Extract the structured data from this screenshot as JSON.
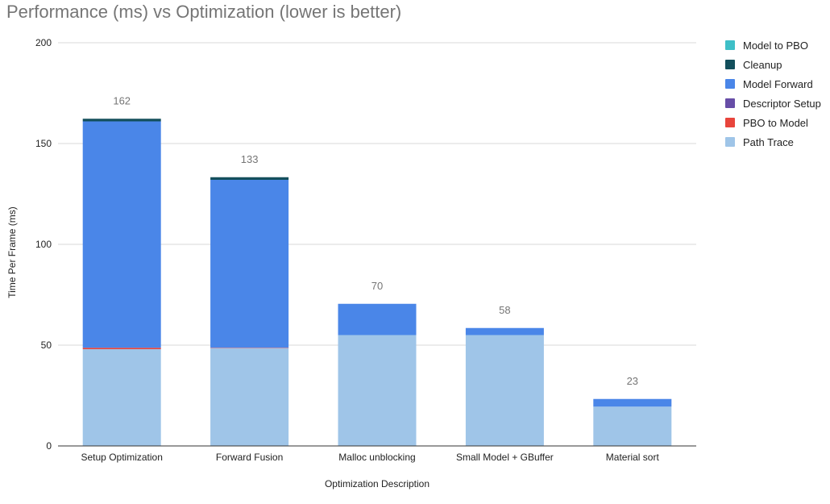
{
  "colors": {
    "model_to_pbo": "#3ebfc7",
    "cleanup": "#134f5c",
    "model_forward": "#4a86e8",
    "descriptor_setup": "#674ea7",
    "pbo_to_model": "#e8453c",
    "path_trace": "#9fc5e8",
    "grid": "#d9d9d9",
    "axis": "#333333",
    "text": "#222222",
    "title": "#757575",
    "total_label": "#757575"
  },
  "chart_data": {
    "type": "bar",
    "stacked": true,
    "title": "Performance (ms) vs Optimization (lower is better)",
    "xlabel": "Optimization Description",
    "ylabel": "Time Per Frame (ms)",
    "ylim": [
      0,
      200
    ],
    "yticks": [
      "0",
      "50",
      "100",
      "150",
      "200"
    ],
    "grid": true,
    "legend_position": "right",
    "categories": [
      "Setup Optimization",
      "Forward Fusion",
      "Malloc unblocking",
      "Small Model + GBuffer",
      "Material sort"
    ],
    "totals": [
      "162",
      "133",
      "70",
      "58",
      "23"
    ],
    "series": [
      {
        "name": "Path Trace",
        "color_key": "path_trace",
        "values": [
          48,
          48.5,
          55,
          55,
          19.5
        ]
      },
      {
        "name": "PBO to Model",
        "color_key": "pbo_to_model",
        "values": [
          0.7,
          0.2,
          0,
          0,
          0
        ]
      },
      {
        "name": "Descriptor Setup",
        "color_key": "descriptor_setup",
        "values": [
          0,
          0,
          0,
          0,
          0
        ]
      },
      {
        "name": "Model Forward",
        "color_key": "model_forward",
        "values": [
          112.3,
          83.3,
          15.5,
          3.5,
          3.8
        ]
      },
      {
        "name": "Cleanup",
        "color_key": "cleanup",
        "values": [
          1.3,
          1.3,
          0,
          0,
          0
        ]
      },
      {
        "name": "Model to PBO",
        "color_key": "model_to_pbo",
        "values": [
          0,
          0,
          0,
          0,
          0
        ]
      }
    ],
    "legend_order": [
      "Model to PBO",
      "Cleanup",
      "Model Forward",
      "Descriptor Setup",
      "PBO to Model",
      "Path Trace"
    ]
  }
}
